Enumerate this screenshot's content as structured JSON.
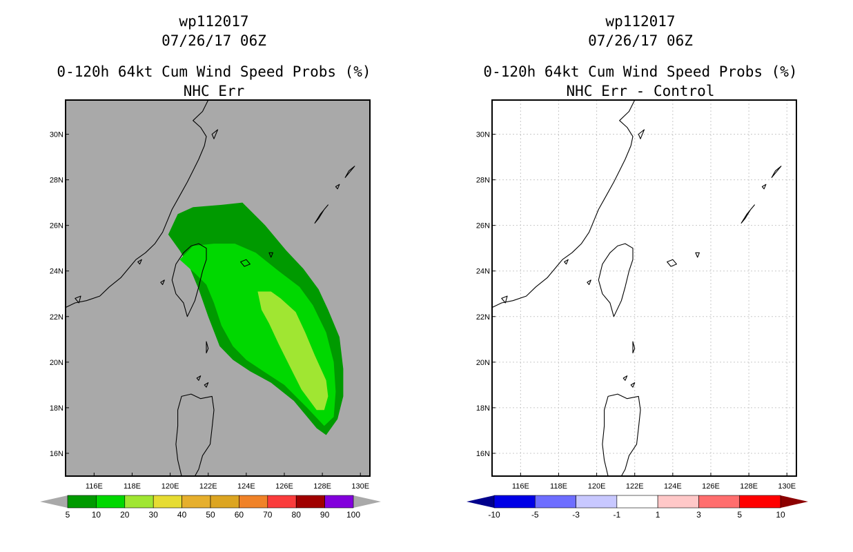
{
  "left_panel": {
    "storm_id": "wp112017",
    "datetime": "07/26/17 06Z",
    "product": "0-120h 64kt Cum Wind Speed Probs (%)",
    "subtitle": "NHC Err",
    "background_color": "#a9a9a9",
    "colorbar": {
      "labels": [
        "5",
        "10",
        "20",
        "30",
        "40",
        "50",
        "60",
        "70",
        "80",
        "90",
        "100"
      ],
      "colors": [
        "#009a00",
        "#00d800",
        "#a0e632",
        "#e6dc32",
        "#e6af2d",
        "#dca522",
        "#f08228",
        "#fa3c3c",
        "#a00000",
        "#8200dc"
      ],
      "under_color": "#a9a9a9",
      "over_color": "#a9a9a9"
    }
  },
  "right_panel": {
    "storm_id": "wp112017",
    "datetime": "07/26/17 06Z",
    "product": "0-120h 64kt Cum Wind Speed Probs (%)",
    "subtitle": "NHC Err - Control",
    "background_color": "#ffffff",
    "colorbar": {
      "labels": [
        "-10",
        "-5",
        "-3",
        "-1",
        "1",
        "3",
        "5",
        "10"
      ],
      "colors": [
        "#0000e6",
        "#6e6eff",
        "#c8c8ff",
        "#ffffff",
        "#ffc8c8",
        "#ff6e6e",
        "#ff0000"
      ],
      "under_color": "#00008c",
      "over_color": "#8c0000"
    }
  },
  "axes": {
    "lon_ticks": [
      "116E",
      "118E",
      "120E",
      "122E",
      "124E",
      "126E",
      "128E",
      "130E"
    ],
    "lat_ticks": [
      "16N",
      "18N",
      "20N",
      "22N",
      "24N",
      "26N",
      "28N",
      "30N"
    ],
    "lon_range": [
      114.5,
      130.5
    ],
    "lat_range": [
      15.0,
      31.5
    ]
  },
  "probability_contours": [
    {
      "level": "5-10%",
      "color": "#009a00",
      "polygon": [
        [
          119.9,
          25.6
        ],
        [
          120.4,
          26.5
        ],
        [
          121.2,
          26.8
        ],
        [
          122.7,
          26.9
        ],
        [
          123.8,
          27.0
        ],
        [
          125.0,
          26.0
        ],
        [
          126.1,
          24.9
        ],
        [
          127.0,
          24.1
        ],
        [
          127.8,
          23.2
        ],
        [
          128.3,
          22.3
        ],
        [
          128.9,
          21.1
        ],
        [
          129.1,
          19.7
        ],
        [
          129.1,
          18.5
        ],
        [
          128.8,
          17.5
        ],
        [
          128.2,
          16.8
        ],
        [
          127.7,
          17.1
        ],
        [
          126.5,
          18.3
        ],
        [
          125.3,
          19.1
        ],
        [
          124.2,
          19.6
        ],
        [
          123.3,
          20.1
        ],
        [
          122.6,
          20.7
        ],
        [
          122.0,
          22.0
        ],
        [
          121.5,
          23.2
        ],
        [
          121.0,
          24.2
        ],
        [
          120.5,
          24.9
        ]
      ]
    },
    {
      "level": "10-20%",
      "color": "#00d800",
      "polygon": [
        [
          120.5,
          24.5
        ],
        [
          121.2,
          25.1
        ],
        [
          122.3,
          25.2
        ],
        [
          123.4,
          25.2
        ],
        [
          124.5,
          24.8
        ],
        [
          125.7,
          24.0
        ],
        [
          126.8,
          23.3
        ],
        [
          127.5,
          22.5
        ],
        [
          128.2,
          21.3
        ],
        [
          128.6,
          20.0
        ],
        [
          128.7,
          18.7
        ],
        [
          128.6,
          17.6
        ],
        [
          128.1,
          17.2
        ],
        [
          127.2,
          18.0
        ],
        [
          126.0,
          19.0
        ],
        [
          124.9,
          19.6
        ],
        [
          124.0,
          20.1
        ],
        [
          123.3,
          20.7
        ],
        [
          122.7,
          21.6
        ],
        [
          122.3,
          22.6
        ],
        [
          121.9,
          23.4
        ],
        [
          121.3,
          23.9
        ]
      ]
    },
    {
      "level": "20-30%",
      "color": "#a0e632",
      "polygon": [
        [
          124.6,
          23.1
        ],
        [
          125.3,
          23.1
        ],
        [
          125.8,
          22.8
        ],
        [
          126.6,
          22.2
        ],
        [
          127.1,
          21.3
        ],
        [
          127.6,
          20.3
        ],
        [
          128.2,
          19.2
        ],
        [
          128.3,
          18.5
        ],
        [
          128.1,
          17.9
        ],
        [
          127.7,
          17.9
        ],
        [
          126.9,
          18.8
        ],
        [
          126.3,
          19.8
        ],
        [
          125.7,
          20.8
        ],
        [
          125.2,
          21.7
        ],
        [
          124.8,
          22.3
        ]
      ]
    }
  ]
}
